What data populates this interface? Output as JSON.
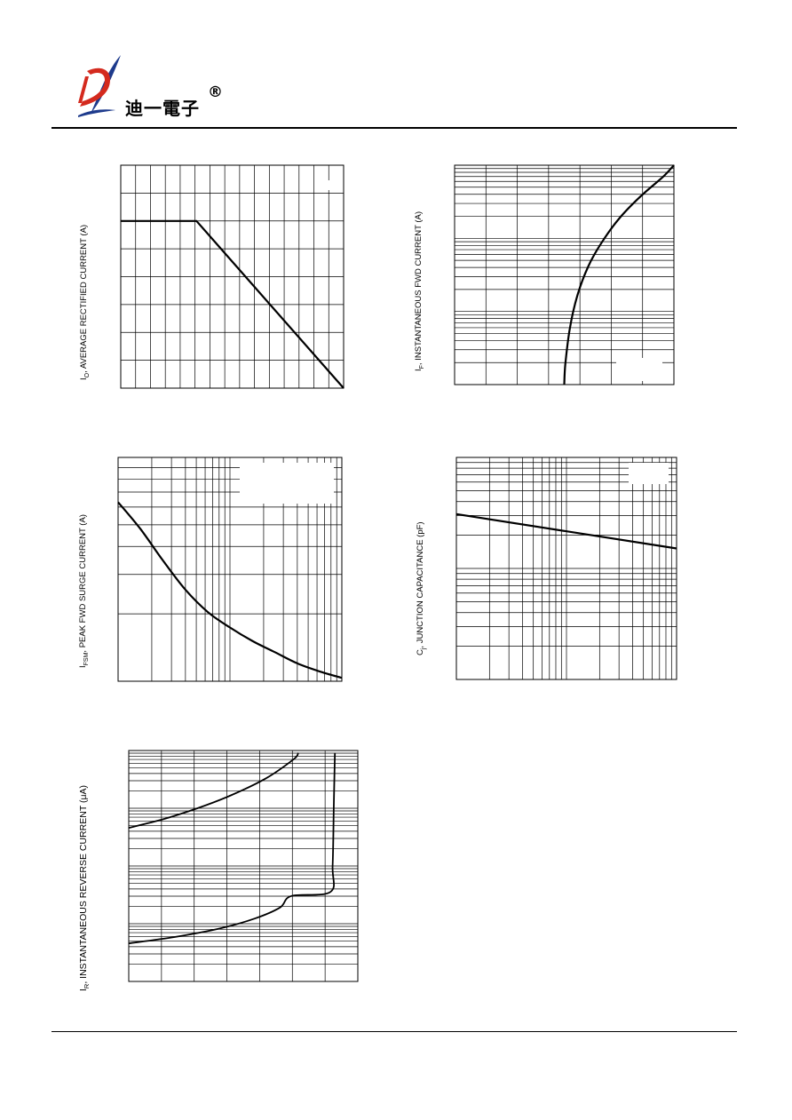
{
  "header": {
    "brand_text": "迪一電子",
    "registered_mark": "®",
    "logo_letter": "D",
    "colors": {
      "logo_red": "#d42a1e",
      "logo_blue": "#1d3a8c"
    }
  },
  "charts": {
    "io_derating": {
      "ylabel": "I",
      "ylabel_sub": "O",
      "ylabel_rest": ", AVERAGE RECTIFIED CURRENT (A)"
    },
    "forward": {
      "ylabel": "I",
      "ylabel_sub": "F",
      "ylabel_rest": ", INSTANTANEOUS FWD CURRENT (A)"
    },
    "surge": {
      "ylabel": "I",
      "ylabel_sub": "FSM",
      "ylabel_rest": ", PEAK FWD SURGE CURRENT (A)"
    },
    "capacitance": {
      "ylabel": "C",
      "ylabel_sub": "j",
      "ylabel_rest": ", JUNCTION CAPACITANCE (pF)"
    },
    "reverse": {
      "ylabel": "I",
      "ylabel_sub": "R",
      "ylabel_rest": ", INSTANTANEOUS REVERSE CURRENT (",
      "ylabel_unit": "μA)"
    }
  },
  "chart_data": [
    {
      "type": "line",
      "title": "",
      "xlabel": "",
      "ylabel": "IO, AVERAGE RECTIFIED CURRENT (A)",
      "grid": true,
      "xlim": [
        0,
        1
      ],
      "ylim": [
        0,
        1
      ],
      "series": [
        {
          "x": [
            0,
            0.34,
            1.0
          ],
          "y": [
            0.75,
            0.75,
            0.0
          ]
        }
      ]
    },
    {
      "type": "line",
      "title": "",
      "xlabel": "",
      "ylabel": "IF, INSTANTANEOUS FWD CURRENT (A)",
      "grid": true,
      "y_scale": "log",
      "y_decades": 3,
      "xlim": [
        0,
        1
      ],
      "series": [
        {
          "x": [
            0.5,
            0.505,
            0.525,
            0.56,
            0.61,
            0.67,
            0.75,
            0.85,
            0.95,
            1.0
          ],
          "y_decade": [
            0,
            0.28,
            0.76,
            1.22,
            1.62,
            1.94,
            2.27,
            2.58,
            2.84,
            3.0
          ]
        }
      ]
    },
    {
      "type": "line",
      "title": "",
      "xlabel": "",
      "ylabel": "IFSM, PEAK FWD SURGE CURRENT (A)",
      "grid": true,
      "x_scale": "log",
      "x_decades": 2,
      "y_scale": "log",
      "y_decades": 1,
      "series": [
        {
          "x_decade": [
            0,
            0.2,
            0.4,
            0.6,
            0.8,
            1.0,
            1.2,
            1.4,
            1.6,
            1.8,
            2.0
          ],
          "y_decade": [
            0.8,
            0.68,
            0.54,
            0.41,
            0.31,
            0.24,
            0.18,
            0.13,
            0.08,
            0.044,
            0.015
          ]
        }
      ]
    },
    {
      "type": "line",
      "title": "",
      "xlabel": "",
      "ylabel": "Cj, JUNCTION CAPACITANCE (pF)",
      "grid": true,
      "x_scale": "log",
      "x_decades": 2,
      "y_scale": "log",
      "y_decades": 2,
      "series": [
        {
          "x_decade": [
            0,
            2.0
          ],
          "y_decade": [
            1.49,
            1.18
          ]
        }
      ]
    },
    {
      "type": "line",
      "title": "",
      "xlabel": "",
      "ylabel": "IR, INSTANTANEOUS REVERSE CURRENT (μA)",
      "grid": true,
      "y_scale": "log",
      "y_decades": 4,
      "xlim": [
        0,
        1
      ],
      "series": [
        {
          "x": [
            0.0,
            0.15,
            0.3,
            0.45,
            0.6,
            0.72,
            0.74
          ],
          "y_decade": [
            2.66,
            2.81,
            3.0,
            3.23,
            3.52,
            3.85,
            3.96
          ]
        },
        {
          "x": [
            0.0,
            0.2,
            0.4,
            0.55,
            0.66,
            0.71,
            0.88,
            0.89,
            0.895,
            0.9
          ],
          "y_decade": [
            0.66,
            0.77,
            0.92,
            1.09,
            1.28,
            1.48,
            1.55,
            2.0,
            3.0,
            3.96
          ]
        }
      ]
    }
  ]
}
